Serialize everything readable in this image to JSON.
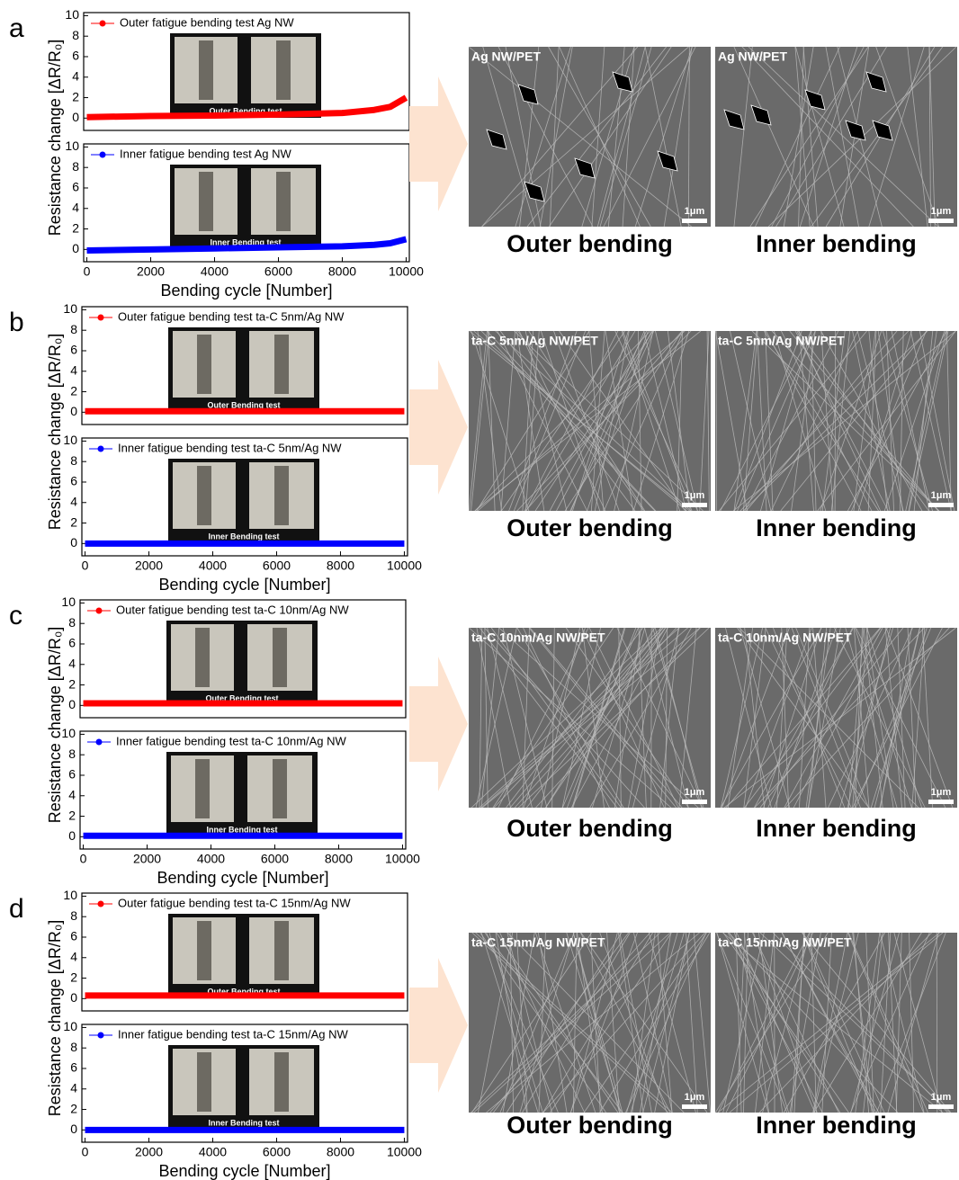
{
  "chart_data": [
    {
      "type": "line",
      "x": [
        0,
        2000,
        4000,
        6000,
        8000,
        9000,
        9500,
        10000
      ],
      "series": [
        {
          "name": "Outer fatigue bending test Ag NW",
          "color": "#ff0000",
          "values": [
            0.1,
            0.2,
            0.25,
            0.35,
            0.5,
            0.8,
            1.1,
            2.0
          ]
        }
      ],
      "xlim": [
        -100,
        10100
      ],
      "ylim": [
        -1.2,
        10.3
      ],
      "yticks": [
        0,
        2,
        4,
        6,
        8,
        10
      ],
      "inset_label": "Outer Bending test"
    },
    {
      "type": "line",
      "x": [
        0,
        2000,
        4000,
        6000,
        8000,
        9000,
        9500,
        10000
      ],
      "series": [
        {
          "name": "Inner fatigue bending test Ag NW",
          "color": "#0000ff",
          "values": [
            -0.1,
            0,
            0.1,
            0.2,
            0.3,
            0.45,
            0.6,
            1.0
          ]
        }
      ],
      "xlim": [
        -100,
        10100
      ],
      "ylim": [
        -1.2,
        10.3
      ],
      "yticks": [
        0,
        2,
        4,
        6,
        8,
        10
      ],
      "xticks": [
        0,
        2000,
        4000,
        6000,
        8000,
        10000
      ],
      "xlabel": "Bending cycle [Number]",
      "inset_label": "Inner Bending test"
    },
    {
      "type": "line",
      "x": [
        0,
        2000,
        4000,
        6000,
        8000,
        10000
      ],
      "series": [
        {
          "name": "Outer fatigue bending test ta-C 5nm/Ag NW",
          "color": "#ff0000",
          "values": [
            0.1,
            0.1,
            0.1,
            0.1,
            0.1,
            0.1
          ]
        }
      ],
      "xlim": [
        -100,
        10100
      ],
      "ylim": [
        -1.2,
        10.3
      ],
      "yticks": [
        0,
        2,
        4,
        6,
        8,
        10
      ],
      "inset_label": "Outer Bending test"
    },
    {
      "type": "line",
      "x": [
        0,
        2000,
        4000,
        6000,
        8000,
        10000
      ],
      "series": [
        {
          "name": "Inner fatigue bending test ta-C 5nm/Ag NW",
          "color": "#0000ff",
          "values": [
            0,
            0,
            0,
            0,
            0,
            0
          ]
        }
      ],
      "xlim": [
        -100,
        10100
      ],
      "ylim": [
        -1.2,
        10.3
      ],
      "yticks": [
        0,
        2,
        4,
        6,
        8,
        10
      ],
      "xticks": [
        0,
        2000,
        4000,
        6000,
        8000,
        10000
      ],
      "xlabel": "Bending cycle [Number]",
      "inset_label": "Inner Bending test"
    },
    {
      "type": "line",
      "x": [
        0,
        2000,
        4000,
        6000,
        8000,
        10000
      ],
      "series": [
        {
          "name": "Outer fatigue bending test ta-C 10nm/Ag NW",
          "color": "#ff0000",
          "values": [
            0.2,
            0.2,
            0.2,
            0.2,
            0.2,
            0.2
          ]
        }
      ],
      "xlim": [
        -100,
        10100
      ],
      "ylim": [
        -1.2,
        10.3
      ],
      "yticks": [
        0,
        2,
        4,
        6,
        8,
        10
      ],
      "inset_label": "Outer Bending test"
    },
    {
      "type": "line",
      "x": [
        0,
        2000,
        4000,
        6000,
        8000,
        10000
      ],
      "series": [
        {
          "name": "Inner fatigue bending test ta-C 10nm/Ag NW",
          "color": "#0000ff",
          "values": [
            0.1,
            0.1,
            0.1,
            0.1,
            0.1,
            0.1
          ]
        }
      ],
      "xlim": [
        -100,
        10100
      ],
      "ylim": [
        -1.2,
        10.3
      ],
      "yticks": [
        0,
        2,
        4,
        6,
        8,
        10
      ],
      "xticks": [
        0,
        2000,
        4000,
        6000,
        8000,
        10000
      ],
      "xlabel": "Bending cycle [Number]",
      "inset_label": "Inner Bending test"
    },
    {
      "type": "line",
      "x": [
        0,
        2000,
        4000,
        6000,
        8000,
        10000
      ],
      "series": [
        {
          "name": "Outer fatigue bending test ta-C 15nm/Ag NW",
          "color": "#ff0000",
          "values": [
            0.3,
            0.3,
            0.3,
            0.3,
            0.3,
            0.3
          ]
        }
      ],
      "xlim": [
        -100,
        10100
      ],
      "ylim": [
        -1.2,
        10.3
      ],
      "yticks": [
        0,
        2,
        4,
        6,
        8,
        10
      ],
      "inset_label": "Outer Bending test"
    },
    {
      "type": "line",
      "x": [
        0,
        2000,
        4000,
        6000,
        8000,
        10000
      ],
      "series": [
        {
          "name": "Inner fatigue bending test ta-C 15nm/Ag NW",
          "color": "#0000ff",
          "values": [
            0,
            0,
            0,
            0,
            0,
            0
          ]
        }
      ],
      "xlim": [
        -100,
        10100
      ],
      "ylim": [
        -1.2,
        10.3
      ],
      "yticks": [
        0,
        2,
        4,
        6,
        8,
        10
      ],
      "xticks": [
        0,
        2000,
        4000,
        6000,
        8000,
        10000
      ],
      "xlabel": "Bending cycle [Number]",
      "inset_label": "Inner Bending test"
    }
  ],
  "panels": [
    {
      "letter": "a",
      "ylabel": "Resistance change [ΔR/R₀]",
      "sem": [
        {
          "label": "Ag NW/PET",
          "scale": "1μm",
          "caption": "Outer bending"
        },
        {
          "label": "Ag NW/PET",
          "scale": "1μm",
          "caption": "Inner bending"
        }
      ]
    },
    {
      "letter": "b",
      "ylabel": "Resistance change [ΔR/R₀]",
      "sem": [
        {
          "label": "ta-C 5nm/Ag NW/PET",
          "scale": "1μm",
          "caption": "Outer bending"
        },
        {
          "label": "ta-C 5nm/Ag NW/PET",
          "scale": "1μm",
          "caption": "Inner bending"
        }
      ]
    },
    {
      "letter": "c",
      "ylabel": "Resistance change [ΔR/R₀]",
      "sem": [
        {
          "label": "ta-C 10nm/Ag NW/PET",
          "scale": "1μm",
          "caption": "Outer bending"
        },
        {
          "label": "ta-C 10nm/Ag NW/PET",
          "scale": "1μm",
          "caption": "Inner bending"
        }
      ]
    },
    {
      "letter": "d",
      "ylabel": "Resistance change [ΔR/R₀]",
      "sem": [
        {
          "label": "ta-C 15nm/Ag NW/PET",
          "scale": "1μm",
          "caption": "Outer bending"
        },
        {
          "label": "ta-C 15nm/Ag NW/PET",
          "scale": "1μm",
          "caption": "Inner bending"
        }
      ]
    }
  ]
}
